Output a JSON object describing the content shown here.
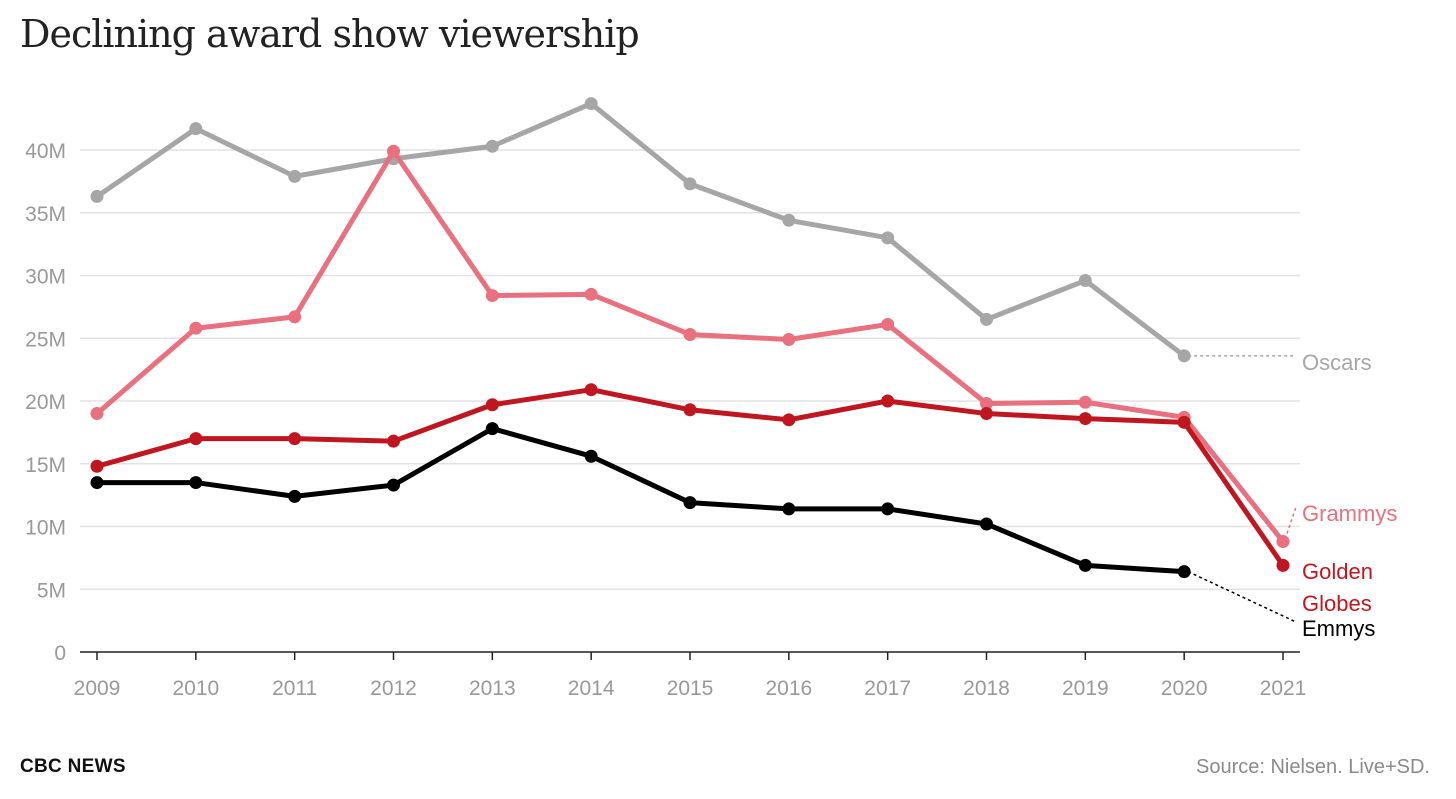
{
  "brand": "CBC NEWS",
  "source": "Source: Nielsen. Live+SD.",
  "chart_data": {
    "type": "line",
    "title": "Declining award show viewership",
    "xlabel": "",
    "ylabel": "",
    "x": [
      2009,
      2010,
      2011,
      2012,
      2013,
      2014,
      2015,
      2016,
      2017,
      2018,
      2019,
      2020,
      2021
    ],
    "ylim": [
      0,
      40
    ],
    "yticks": [
      0,
      5,
      10,
      15,
      20,
      25,
      30,
      35,
      40
    ],
    "ytick_labels": [
      "0",
      "5M",
      "10M",
      "15M",
      "20M",
      "25M",
      "30M",
      "35M",
      "40M"
    ],
    "grid": true,
    "series": [
      {
        "name": "Oscars",
        "label_lines": [
          "Oscars"
        ],
        "color": "#a6a6a6",
        "values": [
          36.3,
          41.7,
          37.9,
          39.3,
          40.3,
          43.7,
          37.3,
          34.4,
          33.0,
          26.5,
          29.6,
          23.6,
          null
        ]
      },
      {
        "name": "Grammys",
        "label_lines": [
          "Grammys"
        ],
        "color": "#e8707f",
        "values": [
          19.0,
          25.8,
          26.7,
          39.9,
          28.4,
          28.5,
          25.3,
          24.9,
          26.1,
          19.8,
          19.9,
          18.7,
          8.8
        ]
      },
      {
        "name": "Golden Globes",
        "label_lines": [
          "Golden",
          "Globes"
        ],
        "color": "#c0161f",
        "values": [
          14.8,
          17.0,
          17.0,
          16.8,
          19.7,
          20.9,
          19.3,
          18.5,
          20.0,
          19.0,
          18.6,
          18.3,
          6.9
        ]
      },
      {
        "name": "Emmys",
        "label_lines": [
          "Emmys"
        ],
        "color": "#000000",
        "values": [
          13.5,
          13.5,
          12.4,
          13.3,
          17.8,
          15.6,
          11.9,
          11.4,
          11.4,
          10.2,
          6.9,
          6.4,
          null
        ]
      }
    ]
  }
}
